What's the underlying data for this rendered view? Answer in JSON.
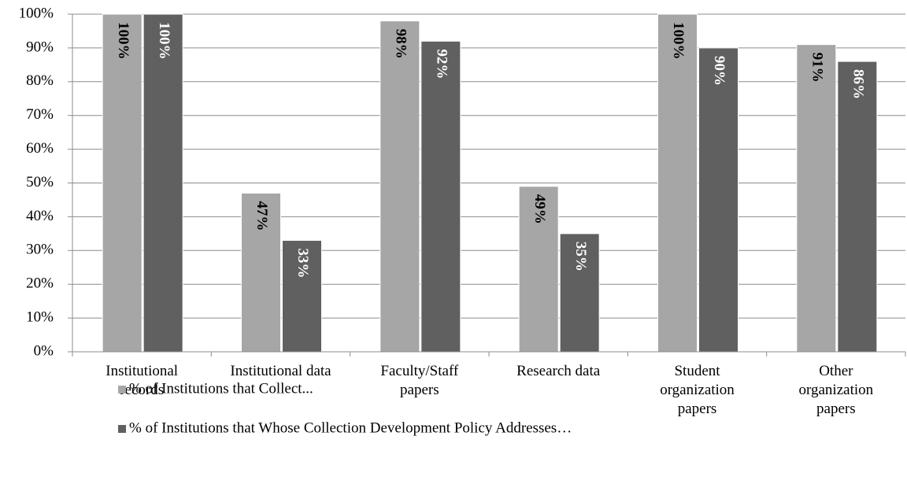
{
  "chart_data": {
    "type": "bar",
    "categories": [
      "Institutional records",
      "Institutional data",
      "Faculty/Staff papers",
      "Research data",
      "Student organization papers",
      "Other organization papers"
    ],
    "series": [
      {
        "name": "% of Institutions that Collect...",
        "color": "#a6a6a6",
        "values": [
          100,
          47,
          98,
          49,
          100,
          91
        ],
        "value_labels": [
          "100%",
          "47%",
          "98%",
          "49%",
          "100%",
          "91%"
        ]
      },
      {
        "name": "% of Institutions that Whose Collection Development Policy Addresses…",
        "color": "#606060",
        "values": [
          100,
          33,
          92,
          35,
          90,
          86
        ],
        "value_labels": [
          "100%",
          "33%",
          "92%",
          "35%",
          "90%",
          "86%"
        ]
      }
    ],
    "ylim": [
      0,
      100
    ],
    "yticks": [
      {
        "value": 0,
        "label": "0%"
      },
      {
        "value": 10,
        "label": "10%"
      },
      {
        "value": 20,
        "label": "20%"
      },
      {
        "value": 30,
        "label": "30%"
      },
      {
        "value": 40,
        "label": "40%"
      },
      {
        "value": 50,
        "label": "50%"
      },
      {
        "value": 60,
        "label": "60%"
      },
      {
        "value": 70,
        "label": "70%"
      },
      {
        "value": 80,
        "label": "80%"
      },
      {
        "value": 90,
        "label": "90%"
      },
      {
        "value": 100,
        "label": "100%"
      }
    ],
    "grid": true
  }
}
